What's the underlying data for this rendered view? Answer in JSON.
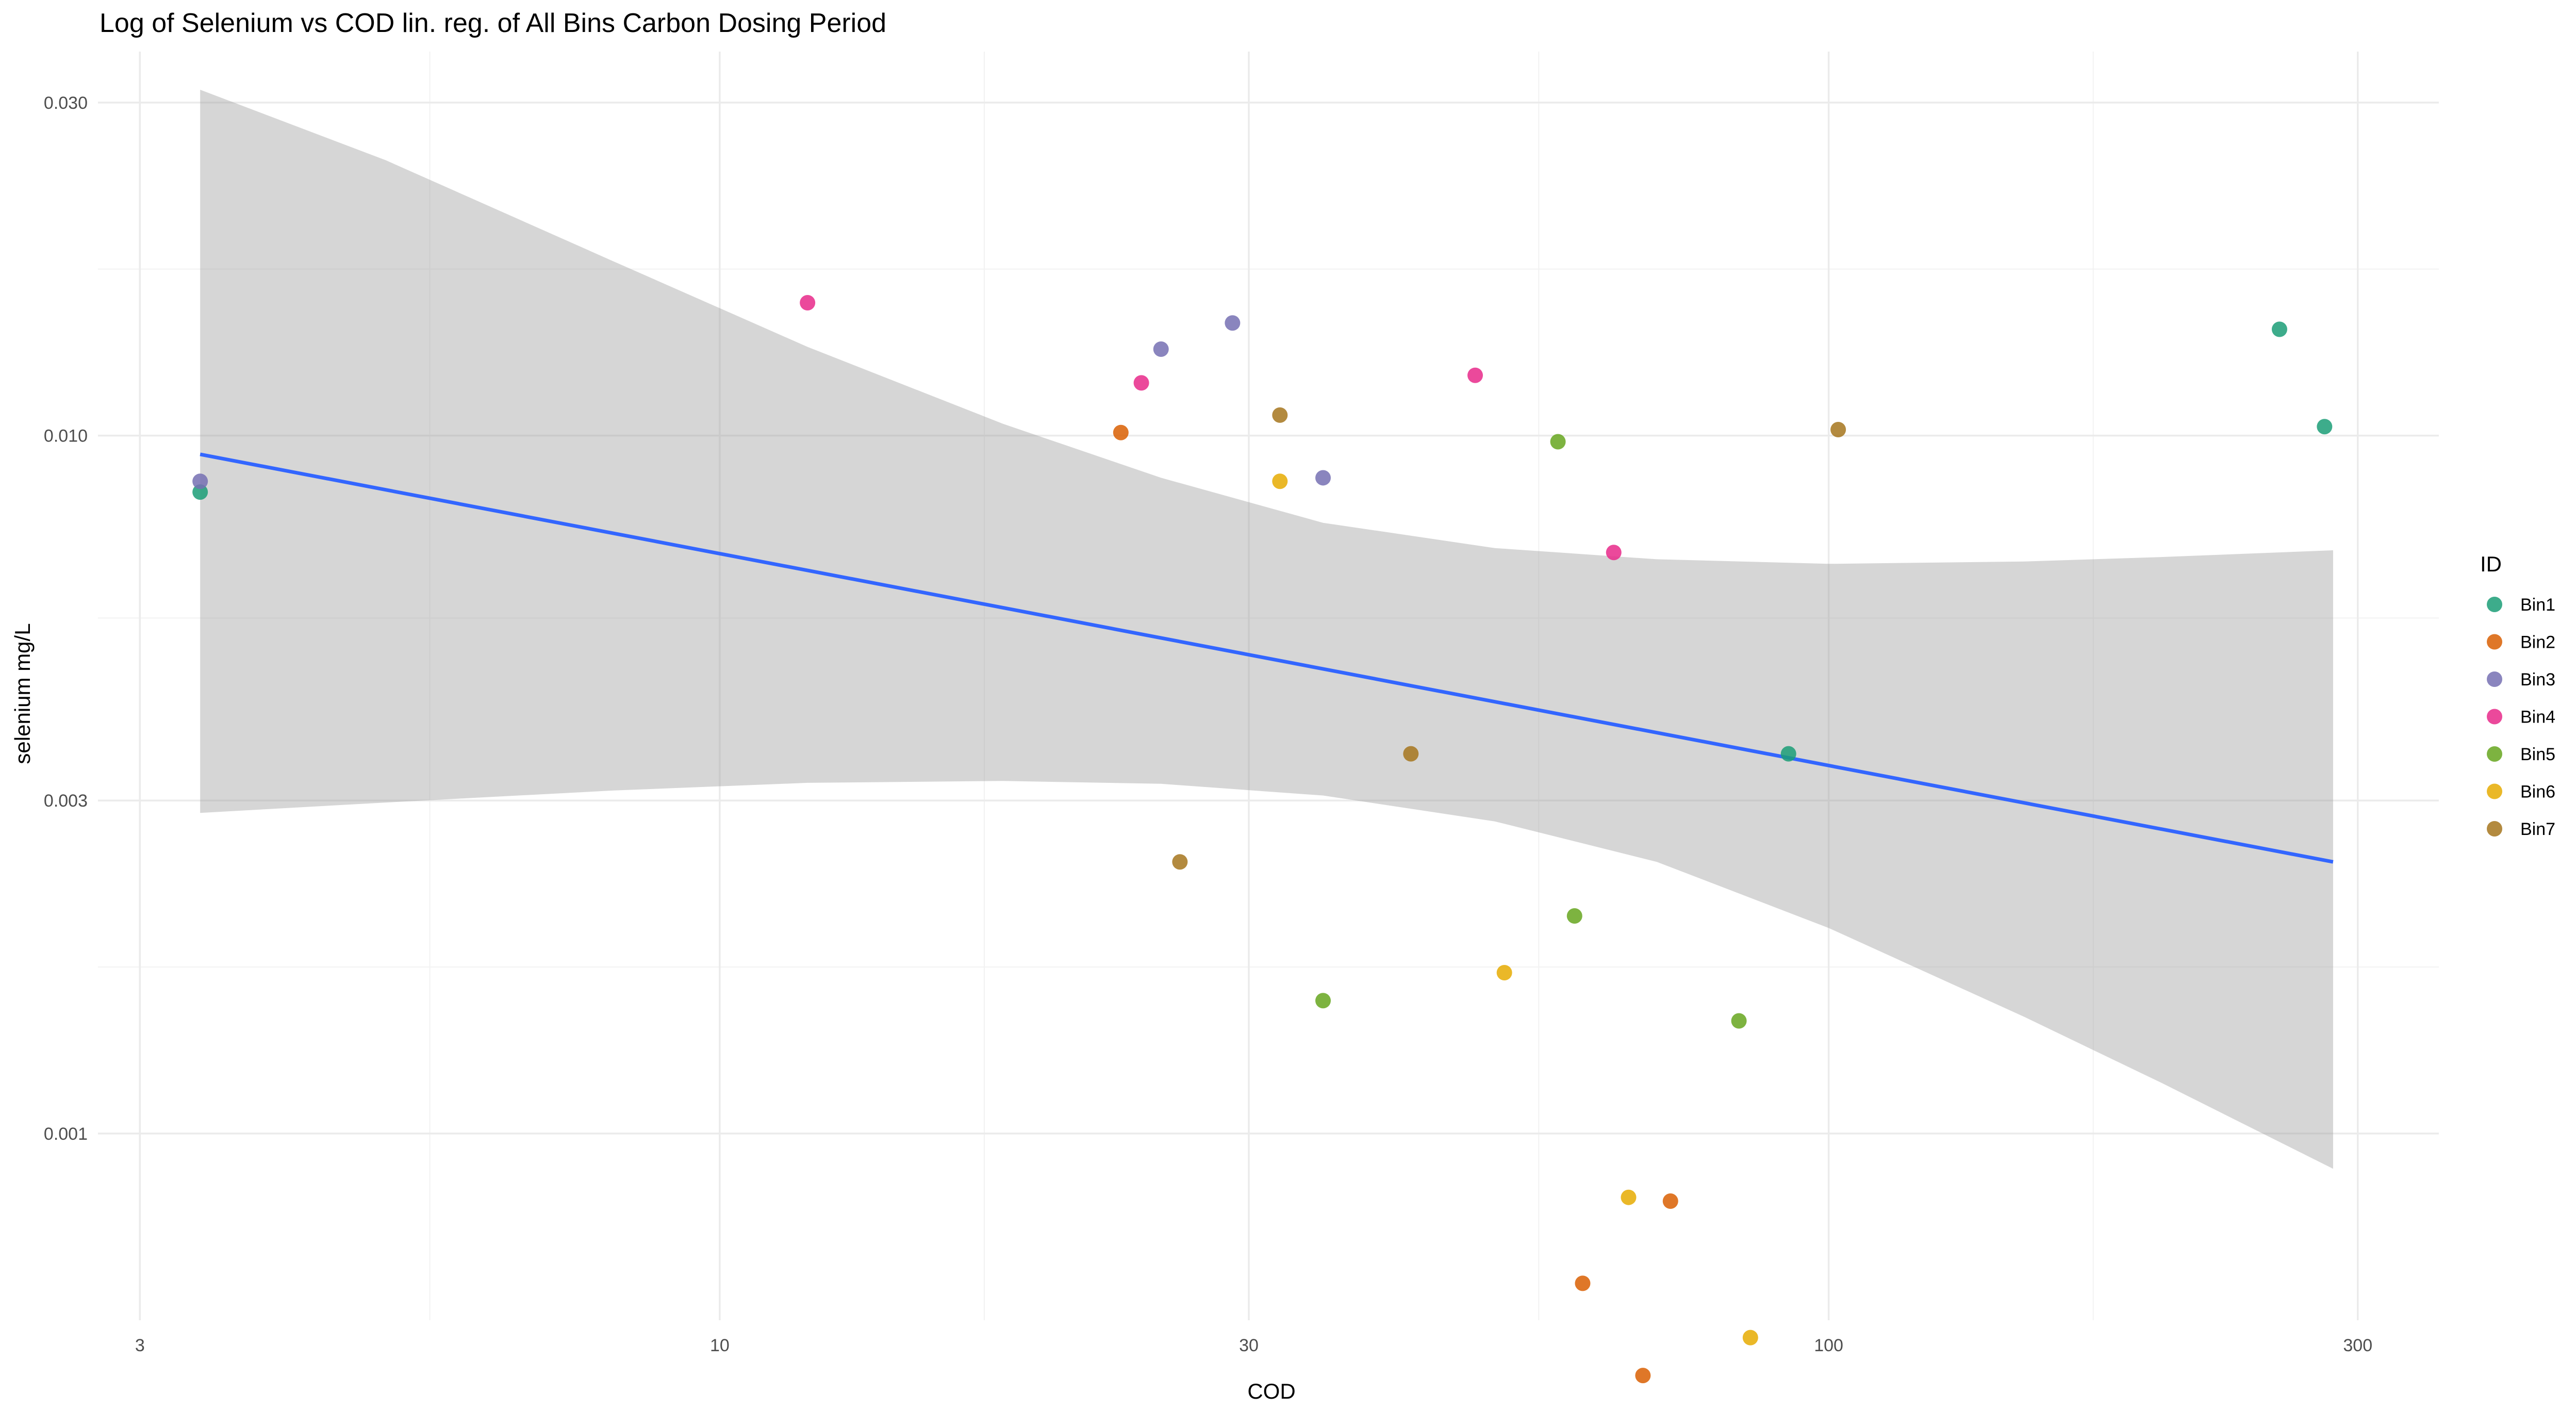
{
  "chart_data": {
    "type": "scatter",
    "title": "Log of Selenium vs COD lin. reg. of All Bins Carbon Dosing Period",
    "xlabel": "COD",
    "ylabel": "selenium mg/L",
    "x_scale": "log10",
    "y_scale": "log10",
    "xlim": [
      2.75,
      355
    ],
    "ylim": [
      0.00054,
      0.0355
    ],
    "x_ticks": [
      {
        "value": 3,
        "label": "3"
      },
      {
        "value": 10,
        "label": "10"
      },
      {
        "value": 30,
        "label": "30"
      },
      {
        "value": 100,
        "label": "100"
      },
      {
        "value": 300,
        "label": "300"
      }
    ],
    "y_ticks": [
      {
        "value": 0.001,
        "label": "0.001"
      },
      {
        "value": 0.003,
        "label": "0.003"
      },
      {
        "value": 0.01,
        "label": "0.010"
      },
      {
        "value": 0.03,
        "label": "0.030"
      }
    ],
    "grid": true,
    "legend": {
      "title": "ID",
      "position": "right"
    },
    "series": [
      {
        "name": "Bin1",
        "color": "#1B9E77",
        "points": [
          [
            3.4,
            0.0083
          ],
          [
            92,
            0.0035
          ],
          [
            255,
            0.0142
          ],
          [
            280,
            0.0103
          ]
        ]
      },
      {
        "name": "Bin2",
        "color": "#D95F02",
        "points": [
          [
            23,
            0.0101
          ],
          [
            60,
            0.00061
          ],
          [
            68,
            0.00045
          ],
          [
            72,
            0.0008
          ]
        ]
      },
      {
        "name": "Bin3",
        "color": "#7570B3",
        "points": [
          [
            3.4,
            0.0086
          ],
          [
            25,
            0.0133
          ],
          [
            29,
            0.0145
          ],
          [
            35,
            0.0087
          ]
        ]
      },
      {
        "name": "Bin4",
        "color": "#E7298A",
        "points": [
          [
            12,
            0.0155
          ],
          [
            24,
            0.0119
          ],
          [
            48,
            0.0122
          ],
          [
            64,
            0.0068
          ]
        ]
      },
      {
        "name": "Bin5",
        "color": "#66A61E",
        "points": [
          [
            35,
            0.00155
          ],
          [
            57,
            0.0098
          ],
          [
            59,
            0.00205
          ],
          [
            83,
            0.00145
          ]
        ]
      },
      {
        "name": "Bin6",
        "color": "#E6AB02",
        "points": [
          [
            32,
            0.0086
          ],
          [
            51,
            0.0017
          ],
          [
            66,
            0.00081
          ],
          [
            85,
            0.00051
          ]
        ]
      },
      {
        "name": "Bin7",
        "color": "#A6761D",
        "points": [
          [
            26,
            0.00245
          ],
          [
            32,
            0.0107
          ],
          [
            42,
            0.0035
          ],
          [
            102,
            0.0102
          ]
        ]
      }
    ],
    "regression": {
      "color": "#3366FF",
      "band_color": "#999999",
      "line": [
        [
          3.4,
          0.0094
        ],
        [
          285,
          0.00245
        ]
      ],
      "band_x": [
        3.4,
        5,
        8,
        12,
        18,
        25,
        35,
        50,
        70,
        100,
        150,
        200,
        285
      ],
      "band_upper": [
        0.0313,
        0.0248,
        0.0178,
        0.0134,
        0.0104,
        0.0087,
        0.0075,
        0.0069,
        0.00665,
        0.00655,
        0.0066,
        0.0067,
        0.00685
      ],
      "band_lower": [
        0.00288,
        0.00298,
        0.0031,
        0.00318,
        0.0032,
        0.00317,
        0.00305,
        0.0028,
        0.00245,
        0.00197,
        0.00147,
        0.00118,
        0.00089
      ]
    }
  }
}
